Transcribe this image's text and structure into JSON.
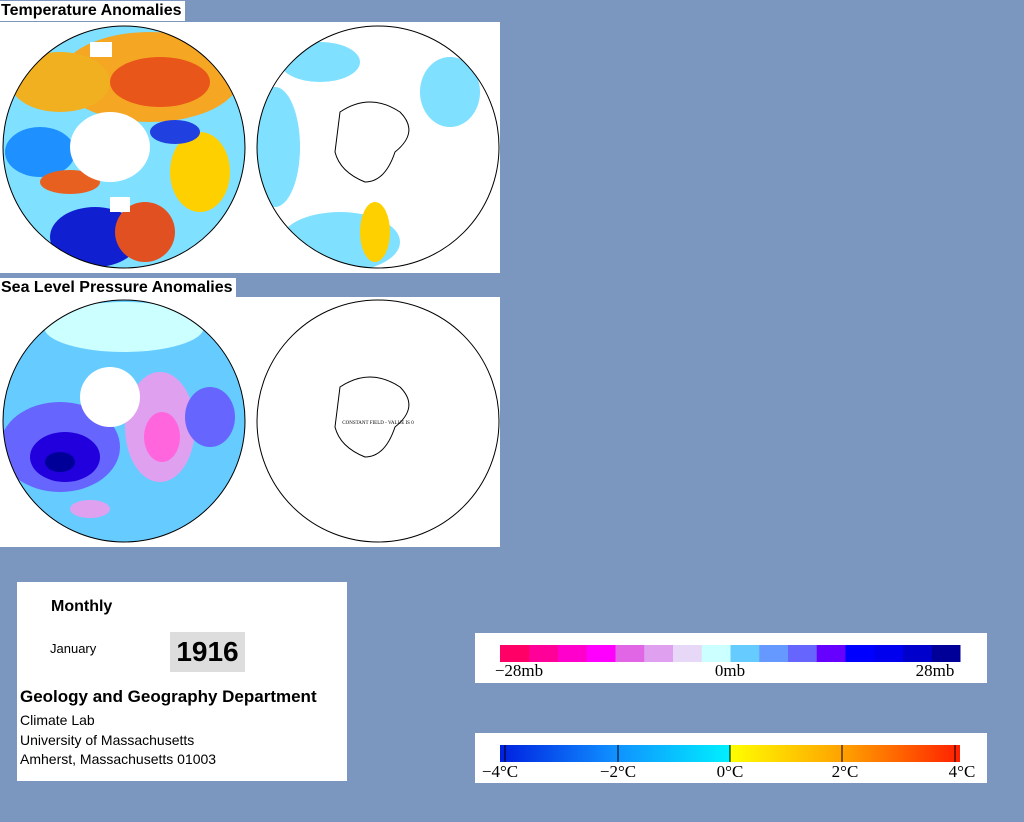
{
  "temperature": {
    "title": "Temperature Anomalies"
  },
  "pressure": {
    "title": "Sea Level Pressure Anomalies",
    "map_note": "CONSTANT FIELD - VALUE IS 0"
  },
  "info": {
    "period": "Monthly",
    "month": "January",
    "year": "1916",
    "department": "Geology and Geography Department",
    "lines": [
      "Climate Lab",
      "University of Massachusetts",
      "Amherst, Massachusetts 01003"
    ]
  },
  "pressure_legend": {
    "labels": [
      "−28mb",
      "0mb",
      "28mb"
    ]
  },
  "temperature_legend": {
    "labels": [
      "−4°C",
      "−2°C",
      "0°C",
      "2°C",
      "4°C"
    ]
  }
}
